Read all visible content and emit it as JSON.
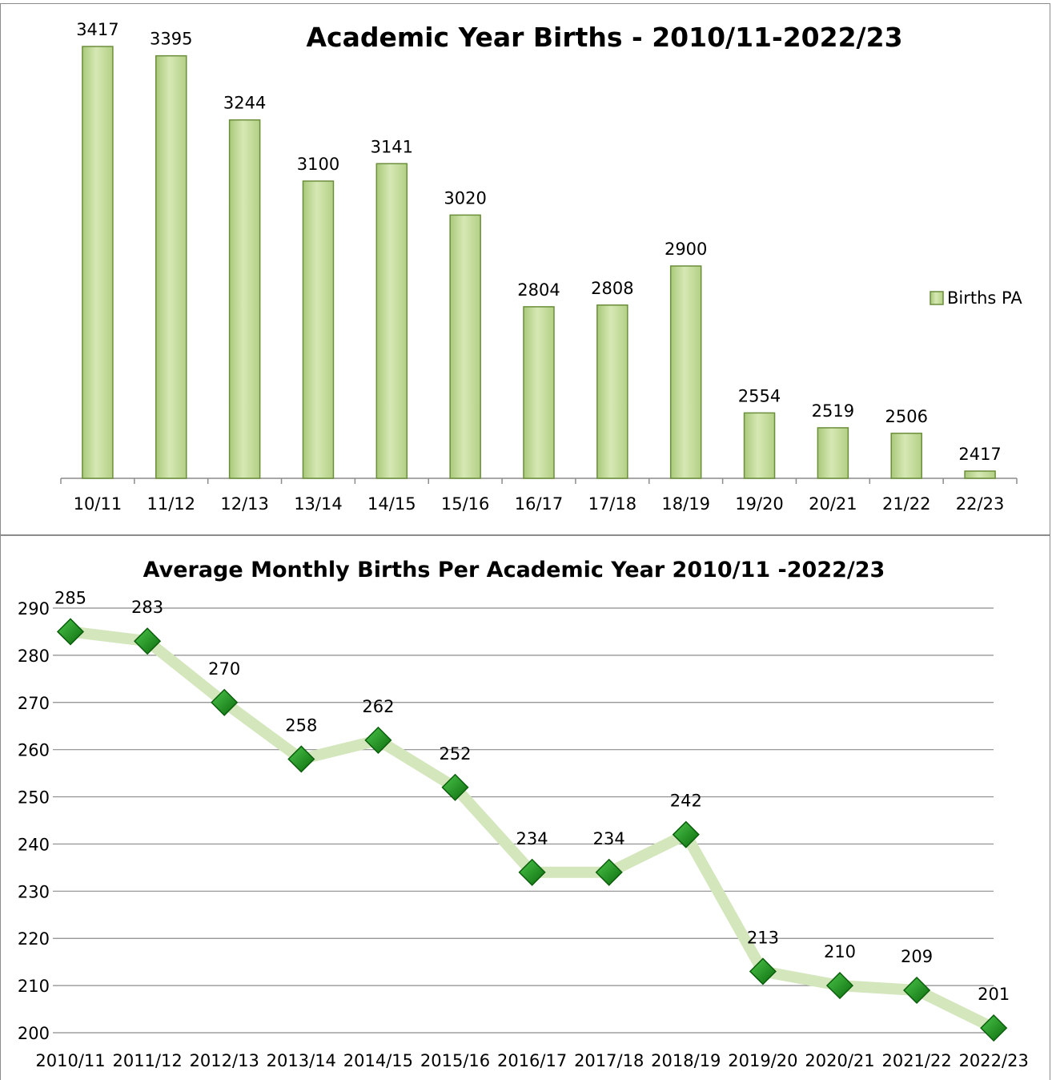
{
  "chart_data": [
    {
      "type": "bar",
      "title": "Academic Year Births - 2010/11-2022/23",
      "categories": [
        "10/11",
        "11/12",
        "12/13",
        "13/14",
        "14/15",
        "15/16",
        "16/17",
        "17/18",
        "18/19",
        "19/20",
        "20/21",
        "21/22",
        "22/23"
      ],
      "series": [
        {
          "name": "Births PA",
          "values": [
            3417,
            3395,
            3244,
            3100,
            3141,
            3020,
            2804,
            2808,
            2900,
            2554,
            2519,
            2506,
            2417
          ]
        }
      ],
      "ylim": [
        2400,
        3417
      ],
      "legend": "right",
      "grid": false,
      "colors": {
        "bar_fill": "#c9e0a0",
        "bar_edge": "#6b8e3a"
      }
    },
    {
      "type": "line",
      "title": "Average Monthly Births Per Academic Year 2010/11 -2022/23",
      "categories": [
        "2010/11",
        "2011/12",
        "2012/13",
        "2013/14",
        "2014/15",
        "2015/16",
        "2016/17",
        "2017/18",
        "2018/19",
        "2019/20",
        "2020/21",
        "2021/22",
        "2022/23"
      ],
      "series": [
        {
          "values": [
            285,
            283,
            270,
            258,
            262,
            252,
            234,
            234,
            242,
            213,
            210,
            209,
            201
          ]
        }
      ],
      "ylim": [
        200,
        290
      ],
      "yticks": [
        200,
        210,
        220,
        230,
        240,
        250,
        260,
        270,
        280,
        290
      ],
      "grid": true,
      "colors": {
        "line": "#d4e6bc",
        "marker": "#1f8c1f",
        "marker_edge": "#0b5e0b"
      }
    }
  ]
}
